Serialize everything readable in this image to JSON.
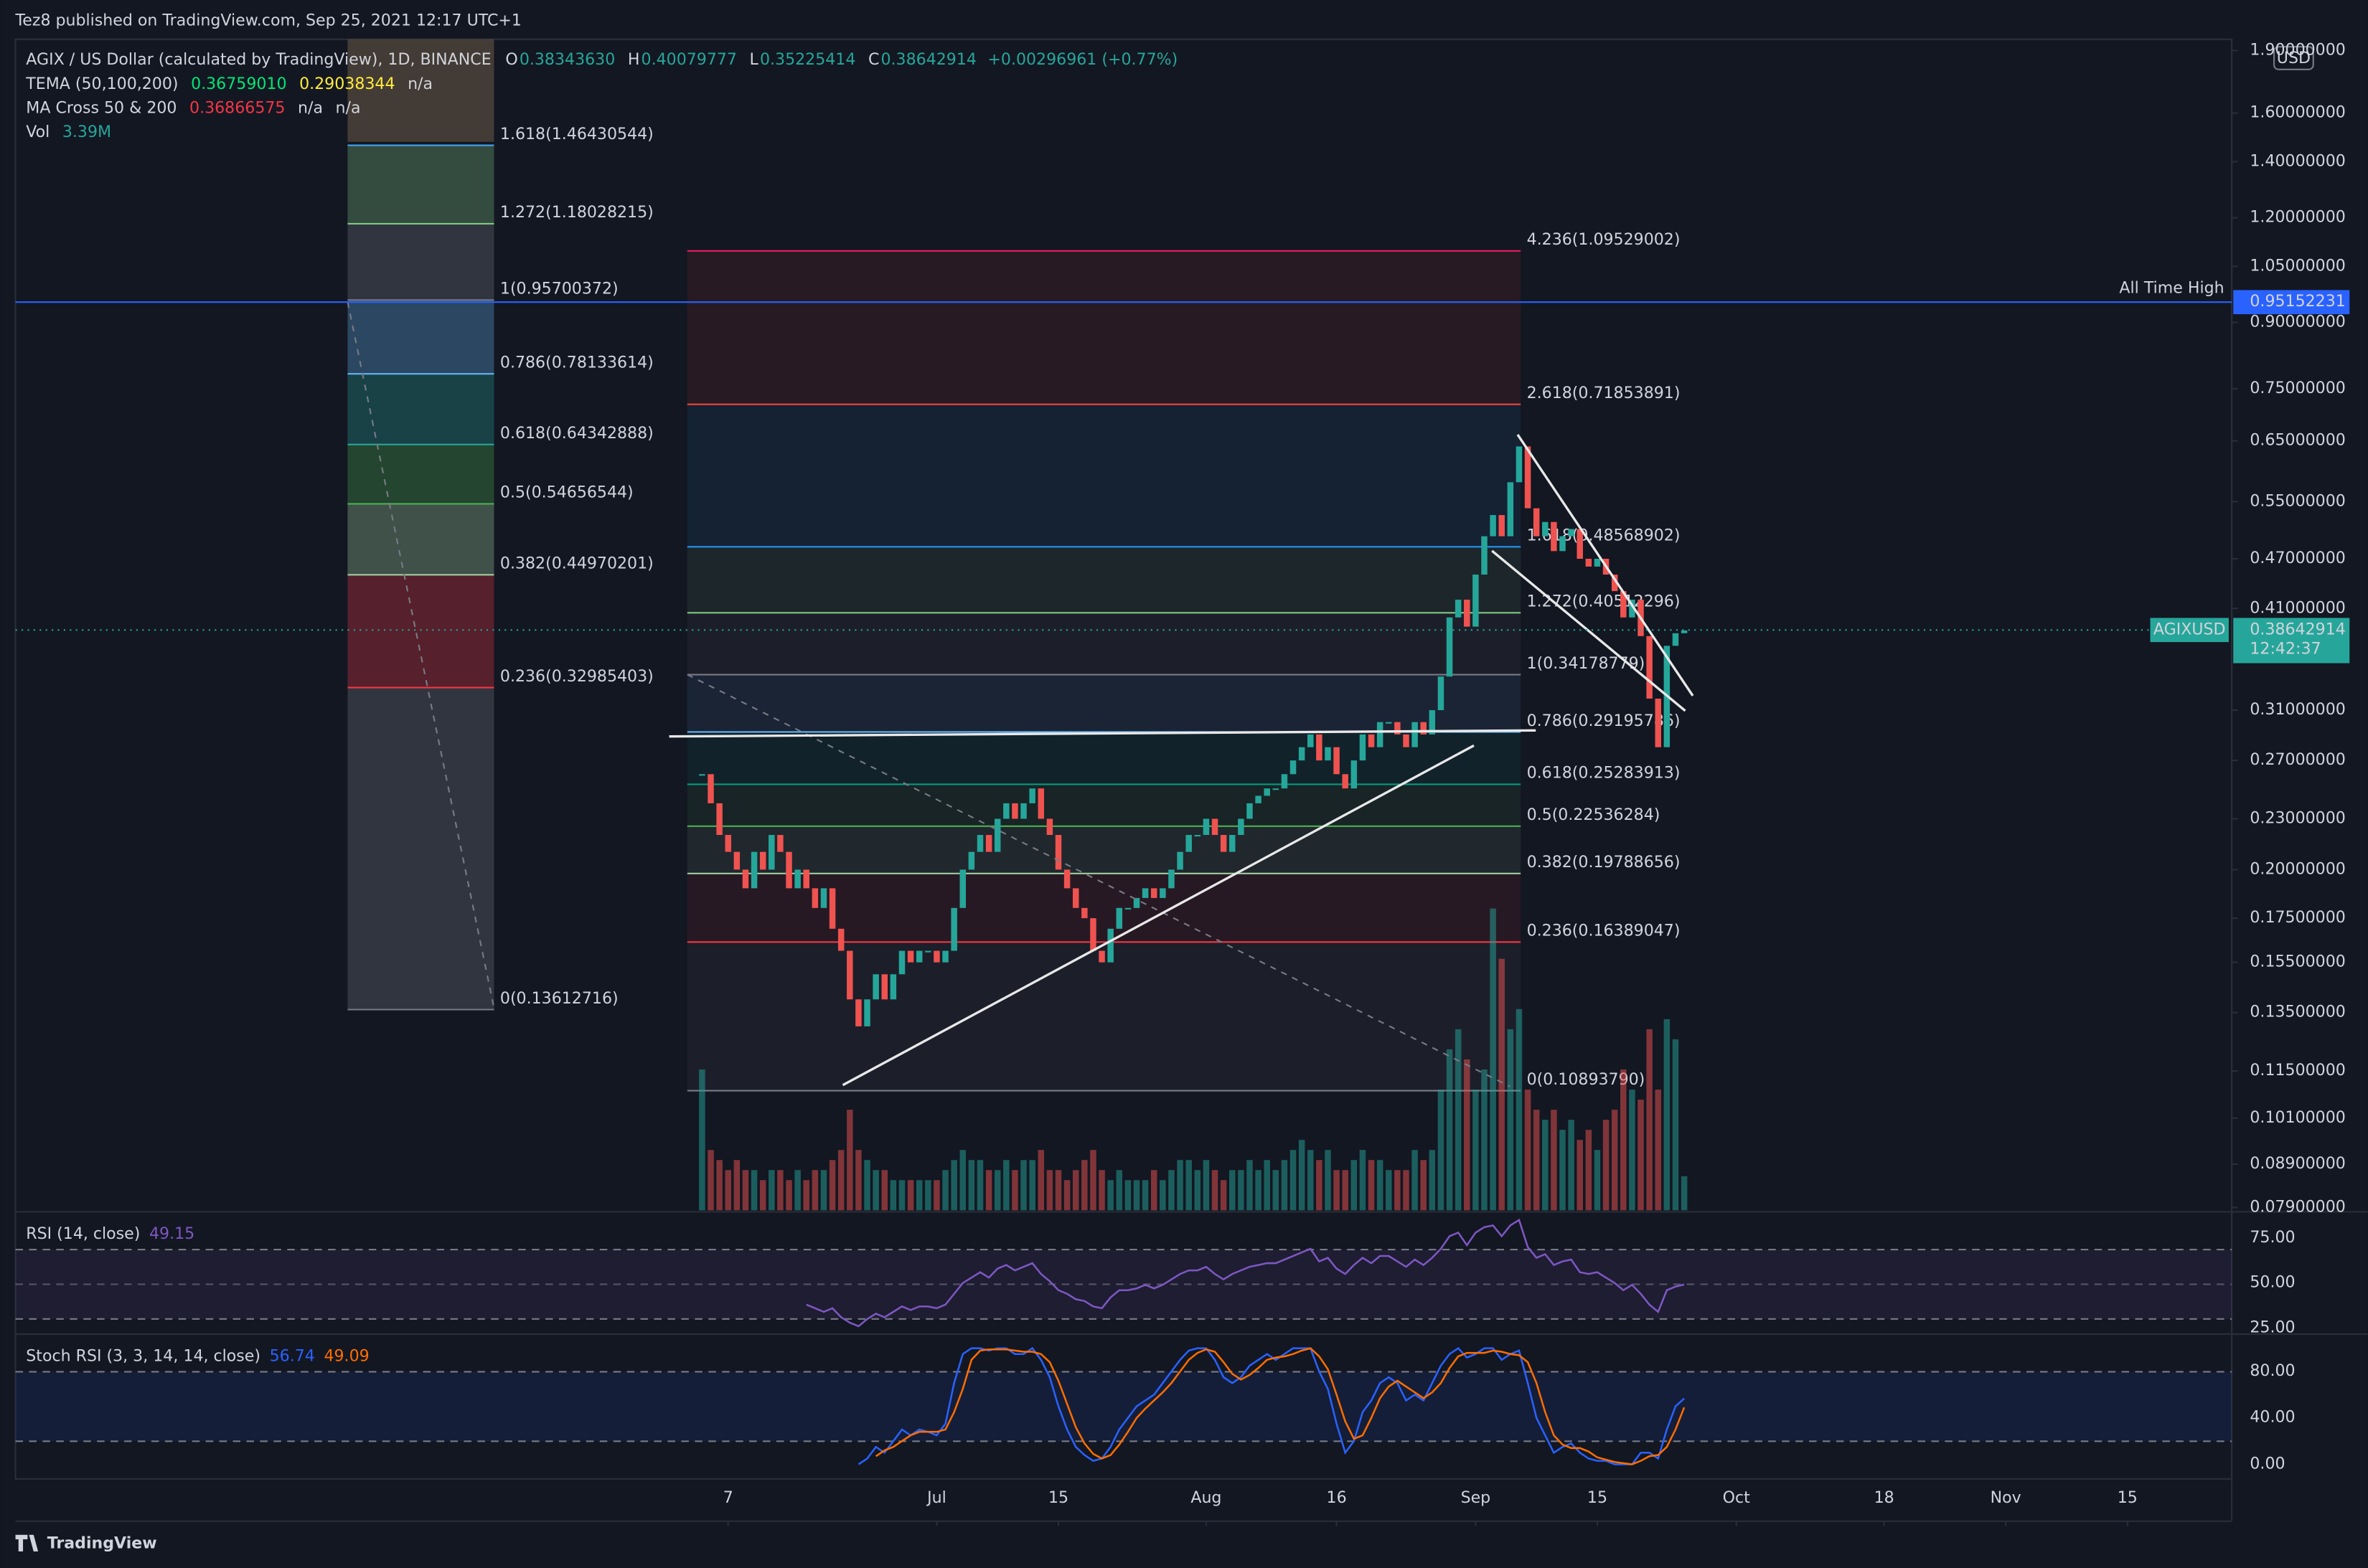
{
  "header": {
    "published": "Tez8 published on TradingView.com, Sep 25, 2021 12:17 UTC+1"
  },
  "legend": {
    "symbol": "AGIX / US Dollar (calculated by TradingView), 1D, BINANCE",
    "ohlc": [
      {
        "key": "O",
        "value": "0.38343630"
      },
      {
        "key": "H",
        "value": "0.40079777"
      },
      {
        "key": "L",
        "value": "0.35225414"
      },
      {
        "key": "C",
        "value": "0.38642914"
      }
    ],
    "change": "+0.00296961 (+0.77%)",
    "tema": {
      "name": "TEMA (50,100,200)",
      "values": [
        "0.36759010",
        "0.29038344",
        "n/a"
      ]
    },
    "ma": {
      "name": "MA Cross 50 & 200",
      "values": [
        "0.36866575",
        "n/a",
        "n/a"
      ]
    },
    "vol": {
      "name": "Vol",
      "value": "3.39M"
    }
  },
  "axis_currency": "USD",
  "chart_data": {
    "type": "candlestick",
    "log_scale": true,
    "grid": false,
    "up_color": "#26a69a",
    "down_color": "#ef5350",
    "xlim": [
      "2021-03-17",
      "2021-11-27"
    ],
    "ylim": [
      0.0784,
      1.96
    ],
    "xticks": [
      {
        "value": "2021-06-07",
        "label": "7"
      },
      {
        "value": "2021-07-01",
        "label": "Jul"
      },
      {
        "value": "2021-07-15",
        "label": "15"
      },
      {
        "value": "2021-08-01",
        "label": "Aug"
      },
      {
        "value": "2021-08-16",
        "label": "16"
      },
      {
        "value": "2021-09-01",
        "label": "Sep"
      },
      {
        "value": "2021-09-15",
        "label": "15"
      },
      {
        "value": "2021-10-01",
        "label": "Oct"
      },
      {
        "value": "2021-10-18",
        "label": "18"
      },
      {
        "value": "2021-11-01",
        "label": "Nov"
      },
      {
        "value": "2021-11-15",
        "label": "15"
      }
    ],
    "yticks": [
      {
        "value": 1.9,
        "label": "1.90000000"
      },
      {
        "value": 1.6,
        "label": "1.60000000"
      },
      {
        "value": 1.4,
        "label": "1.40000000"
      },
      {
        "value": 1.2,
        "label": "1.20000000"
      },
      {
        "value": 1.05,
        "label": "1.05000000"
      },
      {
        "value": 0.9,
        "label": "0.90000000"
      },
      {
        "value": 0.75,
        "label": "0.75000000"
      },
      {
        "value": 0.65,
        "label": "0.65000000"
      },
      {
        "value": 0.55,
        "label": "0.55000000"
      },
      {
        "value": 0.47,
        "label": "0.47000000"
      },
      {
        "value": 0.41,
        "label": "0.41000000"
      },
      {
        "value": 0.31,
        "label": "0.31000000"
      },
      {
        "value": 0.27,
        "label": "0.27000000"
      },
      {
        "value": 0.23,
        "label": "0.23000000"
      },
      {
        "value": 0.2,
        "label": "0.20000000"
      },
      {
        "value": 0.175,
        "label": "0.17500000"
      },
      {
        "value": 0.155,
        "label": "0.15500000"
      },
      {
        "value": 0.135,
        "label": "0.13500000"
      },
      {
        "value": 0.115,
        "label": "0.11500000"
      },
      {
        "value": 0.101,
        "label": "0.10100000"
      },
      {
        "value": 0.089,
        "label": "0.08900000"
      },
      {
        "value": 0.079,
        "label": "0.07900000"
      }
    ],
    "x": [
      "2021-06-04",
      "2021-06-05",
      "2021-06-06",
      "2021-06-07",
      "2021-06-08",
      "2021-06-09",
      "2021-06-10",
      "2021-06-11",
      "2021-06-12",
      "2021-06-13",
      "2021-06-14",
      "2021-06-15",
      "2021-06-16",
      "2021-06-17",
      "2021-06-18",
      "2021-06-19",
      "2021-06-20",
      "2021-06-21",
      "2021-06-22",
      "2021-06-23",
      "2021-06-24",
      "2021-06-25",
      "2021-06-26",
      "2021-06-27",
      "2021-06-28",
      "2021-06-29",
      "2021-06-30",
      "2021-07-01",
      "2021-07-02",
      "2021-07-03",
      "2021-07-04",
      "2021-07-05",
      "2021-07-06",
      "2021-07-07",
      "2021-07-08",
      "2021-07-09",
      "2021-07-10",
      "2021-07-11",
      "2021-07-12",
      "2021-07-13",
      "2021-07-14",
      "2021-07-15",
      "2021-07-16",
      "2021-07-17",
      "2021-07-18",
      "2021-07-19",
      "2021-07-20",
      "2021-07-21",
      "2021-07-22",
      "2021-07-23",
      "2021-07-24",
      "2021-07-25",
      "2021-07-26",
      "2021-07-27",
      "2021-07-28",
      "2021-07-29",
      "2021-07-30",
      "2021-07-31",
      "2021-08-01",
      "2021-08-02",
      "2021-08-03",
      "2021-08-04",
      "2021-08-05",
      "2021-08-06",
      "2021-08-07",
      "2021-08-08",
      "2021-08-09",
      "2021-08-10",
      "2021-08-11",
      "2021-08-12",
      "2021-08-13",
      "2021-08-14",
      "2021-08-15",
      "2021-08-16",
      "2021-08-17",
      "2021-08-18",
      "2021-08-19",
      "2021-08-20",
      "2021-08-21",
      "2021-08-22",
      "2021-08-23",
      "2021-08-24",
      "2021-08-25",
      "2021-08-26",
      "2021-08-27",
      "2021-08-28",
      "2021-08-29",
      "2021-08-30",
      "2021-08-31",
      "2021-09-01",
      "2021-09-02",
      "2021-09-03",
      "2021-09-04",
      "2021-09-05",
      "2021-09-06",
      "2021-09-07",
      "2021-09-08",
      "2021-09-09",
      "2021-09-10",
      "2021-09-11",
      "2021-09-12",
      "2021-09-13",
      "2021-09-14",
      "2021-09-15",
      "2021-09-16",
      "2021-09-17",
      "2021-09-18",
      "2021-09-19",
      "2021-09-20",
      "2021-09-21",
      "2021-09-22",
      "2021-09-23",
      "2021-09-24",
      "2021-09-25"
    ],
    "close": [
      0.26,
      0.24,
      0.22,
      0.21,
      0.2,
      0.19,
      0.21,
      0.2,
      0.22,
      0.21,
      0.19,
      0.2,
      0.19,
      0.18,
      0.19,
      0.17,
      0.16,
      0.14,
      0.13,
      0.14,
      0.15,
      0.14,
      0.15,
      0.16,
      0.155,
      0.16,
      0.16,
      0.155,
      0.16,
      0.18,
      0.2,
      0.21,
      0.22,
      0.21,
      0.23,
      0.24,
      0.23,
      0.24,
      0.25,
      0.23,
      0.22,
      0.2,
      0.19,
      0.18,
      0.175,
      0.16,
      0.155,
      0.17,
      0.18,
      0.18,
      0.185,
      0.19,
      0.185,
      0.19,
      0.2,
      0.21,
      0.22,
      0.22,
      0.23,
      0.22,
      0.21,
      0.22,
      0.23,
      0.24,
      0.245,
      0.25,
      0.25,
      0.26,
      0.27,
      0.28,
      0.29,
      0.27,
      0.28,
      0.26,
      0.25,
      0.27,
      0.29,
      0.28,
      0.3,
      0.3,
      0.29,
      0.28,
      0.3,
      0.29,
      0.31,
      0.34,
      0.4,
      0.42,
      0.39,
      0.45,
      0.5,
      0.53,
      0.5,
      0.58,
      0.64,
      0.54,
      0.5,
      0.52,
      0.48,
      0.5,
      0.51,
      0.47,
      0.46,
      0.47,
      0.45,
      0.43,
      0.4,
      0.42,
      0.38,
      0.32,
      0.28,
      0.37,
      0.383,
      0.386
    ],
    "volume": [
      14,
      6,
      5,
      4,
      5,
      4,
      4,
      3,
      4,
      4,
      3,
      4,
      3,
      4,
      4,
      5,
      6,
      10,
      6,
      5,
      4,
      4,
      3,
      3,
      3,
      3,
      3,
      3,
      4,
      5,
      6,
      5,
      5,
      4,
      4,
      5,
      4,
      5,
      5,
      6,
      4,
      4,
      3,
      4,
      5,
      6,
      4,
      3,
      4,
      3,
      3,
      3,
      4,
      3,
      4,
      5,
      5,
      4,
      5,
      4,
      3,
      4,
      4,
      5,
      4,
      5,
      4,
      5,
      6,
      7,
      6,
      5,
      6,
      4,
      4,
      5,
      6,
      5,
      5,
      4,
      4,
      4,
      6,
      5,
      6,
      12,
      16,
      18,
      15,
      12,
      14,
      30,
      25,
      18,
      20,
      12,
      10,
      9,
      10,
      8,
      9,
      7,
      8,
      6,
      9,
      10,
      14,
      12,
      11,
      18,
      12,
      19,
      17,
      3.39
    ]
  },
  "fib_left": [
    {
      "label": "1.618(1.46430544)",
      "price": 1.46430544,
      "color": "#42a5f5"
    },
    {
      "label": "1.272(1.18028215)",
      "price": 1.18028215,
      "color": "#81c784"
    },
    {
      "label": "1(0.95700372)",
      "price": 0.95700372,
      "color": "#787b86"
    },
    {
      "label": "0.786(0.78133614)",
      "price": 0.78133614,
      "color": "#64b5f6"
    },
    {
      "label": "0.618(0.64342888)",
      "price": 0.64342888,
      "color": "#26a69a"
    },
    {
      "label": "0.5(0.54656544)",
      "price": 0.54656544,
      "color": "#4caf50"
    },
    {
      "label": "0.382(0.44970201)",
      "price": 0.44970201,
      "color": "#a5d6a7"
    },
    {
      "label": "0.236(0.32985403)",
      "price": 0.32985403,
      "color": "#f23645"
    },
    {
      "label": "0(0.13612716)",
      "price": 0.13612716,
      "color": "#787b86"
    }
  ],
  "fib_right": [
    {
      "label": "4.236(1.09529002)",
      "price": 1.09529002,
      "color": "#e91e63"
    },
    {
      "label": "2.618(0.71853891)",
      "price": 0.71853891,
      "color": "#f44336"
    },
    {
      "label": "1.618(0.48568902)",
      "price": 0.48568902,
      "color": "#2196f3"
    },
    {
      "label": "1.272(0.40512296)",
      "price": 0.40512296,
      "color": "#81c784"
    },
    {
      "label": "1(0.34178779)",
      "price": 0.34178779,
      "color": "#787b86"
    },
    {
      "label": "0.786(0.29195786)",
      "price": 0.29195786,
      "color": "#64b5f6"
    },
    {
      "label": "0.618(0.25283913)",
      "price": 0.25283913,
      "color": "#089981"
    },
    {
      "label": "0.5(0.22536284)",
      "price": 0.22536284,
      "color": "#4caf50"
    },
    {
      "label": "0.382(0.19788656)",
      "price": 0.19788656,
      "color": "#a5d6a7"
    },
    {
      "label": "0.236(0.16389047)",
      "price": 0.16389047,
      "color": "#f23645"
    },
    {
      "label": "0(0.10893790)",
      "price": 0.1089379,
      "color": "#787b86"
    }
  ],
  "ath": {
    "label": "All Time High",
    "price": 0.95152231,
    "color": "#2962ff"
  },
  "last_price": {
    "symbol": "AGIXUSD",
    "price": 0.38642914,
    "countdown": "12:42:37",
    "color": "#26a69a"
  },
  "rsi": {
    "title": "RSI (14, close)",
    "last": "49.15",
    "color": "#7e57c2",
    "ylim": [
      25,
      87
    ],
    "yticks": [
      {
        "value": 75,
        "label": "75.00"
      },
      {
        "value": 50,
        "label": "50.00"
      },
      {
        "value": 25,
        "label": "25.00"
      }
    ],
    "values": [
      null,
      null,
      null,
      null,
      null,
      null,
      null,
      null,
      null,
      null,
      null,
      null,
      38,
      36,
      34,
      36,
      31,
      28,
      26,
      30,
      33,
      31,
      34,
      37,
      35,
      37,
      37,
      36,
      38,
      44,
      50,
      53,
      56,
      53,
      58,
      60,
      57,
      59,
      61,
      55,
      51,
      46,
      44,
      41,
      40,
      37,
      36,
      42,
      46,
      46,
      47,
      49,
      47,
      49,
      52,
      55,
      57,
      57,
      59,
      55,
      52,
      55,
      57,
      59,
      60,
      61,
      61,
      63,
      65,
      67,
      69,
      62,
      64,
      58,
      55,
      60,
      64,
      61,
      65,
      65,
      62,
      59,
      63,
      60,
      64,
      69,
      76,
      78,
      71,
      78,
      81,
      82,
      76,
      82,
      85,
      70,
      64,
      66,
      60,
      62,
      63,
      56,
      55,
      56,
      53,
      50,
      46,
      49,
      44,
      38,
      34,
      46,
      48,
      49.15
    ]
  },
  "stoch": {
    "title": "Stoch RSI (3, 3, 14, 14, close)",
    "k_last": "56.74",
    "d_last": "49.09",
    "k_color": "#2962ff",
    "d_color": "#ff6d00",
    "ylim": [
      -10,
      107
    ],
    "yticks": [
      {
        "value": 80,
        "label": "80.00"
      },
      {
        "value": 40,
        "label": "40.00"
      },
      {
        "value": 0,
        "label": "0.00"
      }
    ],
    "k": [
      null,
      null,
      null,
      null,
      null,
      null,
      null,
      null,
      null,
      null,
      null,
      null,
      null,
      null,
      null,
      null,
      null,
      null,
      0,
      5,
      15,
      10,
      20,
      30,
      25,
      30,
      28,
      25,
      35,
      70,
      95,
      100,
      100,
      98,
      100,
      100,
      95,
      95,
      100,
      90,
      75,
      50,
      30,
      15,
      8,
      3,
      5,
      15,
      30,
      40,
      50,
      55,
      60,
      70,
      80,
      90,
      98,
      100,
      100,
      90,
      75,
      70,
      75,
      85,
      90,
      95,
      90,
      95,
      100,
      100,
      100,
      80,
      65,
      35,
      10,
      20,
      45,
      55,
      70,
      75,
      70,
      55,
      60,
      55,
      70,
      85,
      95,
      100,
      92,
      95,
      100,
      100,
      90,
      95,
      98,
      70,
      40,
      25,
      10,
      15,
      18,
      10,
      5,
      3,
      3,
      0,
      0,
      0,
      10,
      10,
      5,
      30,
      50,
      56.74
    ],
    "d": [
      null,
      null,
      null,
      null,
      null,
      null,
      null,
      null,
      null,
      null,
      null,
      null,
      null,
      null,
      null,
      null,
      null,
      null,
      null,
      null,
      7,
      12,
      15,
      20,
      25,
      28,
      28,
      28,
      30,
      45,
      65,
      90,
      98,
      99,
      99,
      99,
      98,
      97,
      97,
      95,
      88,
      72,
      52,
      32,
      18,
      9,
      5,
      8,
      17,
      28,
      40,
      48,
      55,
      62,
      70,
      80,
      90,
      96,
      99,
      97,
      88,
      78,
      73,
      77,
      83,
      90,
      92,
      93,
      95,
      98,
      100,
      93,
      82,
      60,
      37,
      22,
      25,
      40,
      57,
      67,
      72,
      67,
      62,
      57,
      62,
      70,
      83,
      93,
      96,
      96,
      96,
      98,
      97,
      95,
      94,
      88,
      70,
      45,
      25,
      17,
      14,
      14,
      11,
      6,
      4,
      2,
      1,
      0,
      3,
      7,
      8,
      15,
      30,
      49.09
    ]
  },
  "footer": {
    "brand": "TradingView"
  }
}
